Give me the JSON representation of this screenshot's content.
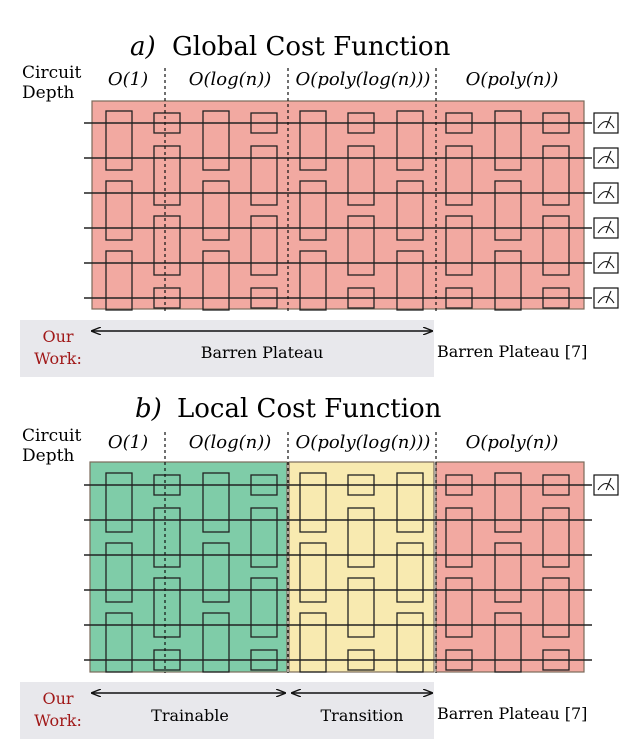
{
  "panel_a": {
    "letter": "a)",
    "title": "Global Cost Function",
    "depth_label_line1": "Circuit",
    "depth_label_line2": "Depth",
    "depth_labels": [
      "O(1)",
      "O(log(n))",
      "O(poly(log(n)))",
      "O(poly(n))"
    ],
    "our_work_line1": "Our",
    "our_work_line2": "Work:",
    "regions": [
      {
        "label": "Barren Plateau",
        "color": "#f2a9a1"
      },
      {
        "label": "",
        "color": "#f2a9a1"
      },
      {
        "label": "Barren Plateau [7]",
        "color": "#f2a9a1"
      }
    ],
    "measured_qubits": 6
  },
  "panel_b": {
    "letter": "b)",
    "title": "Local Cost Function",
    "depth_label_line1": "Circuit",
    "depth_label_line2": "Depth",
    "depth_labels": [
      "O(1)",
      "O(log(n))",
      "O(poly(log(n)))",
      "O(poly(n))"
    ],
    "our_work_line1": "Our",
    "our_work_line2": "Work:",
    "regions": [
      {
        "label": "Trainable",
        "color": "#7fcca8"
      },
      {
        "label": "Transition",
        "color": "#f8eab0"
      },
      {
        "label": "Barren Plateau [7]",
        "color": "#f2a9a1"
      }
    ],
    "measured_qubits": 1
  },
  "colors": {
    "our_work_text": "#a01818",
    "our_work_bg": "#e8e8ec",
    "region_border": "#7a6a5a"
  }
}
